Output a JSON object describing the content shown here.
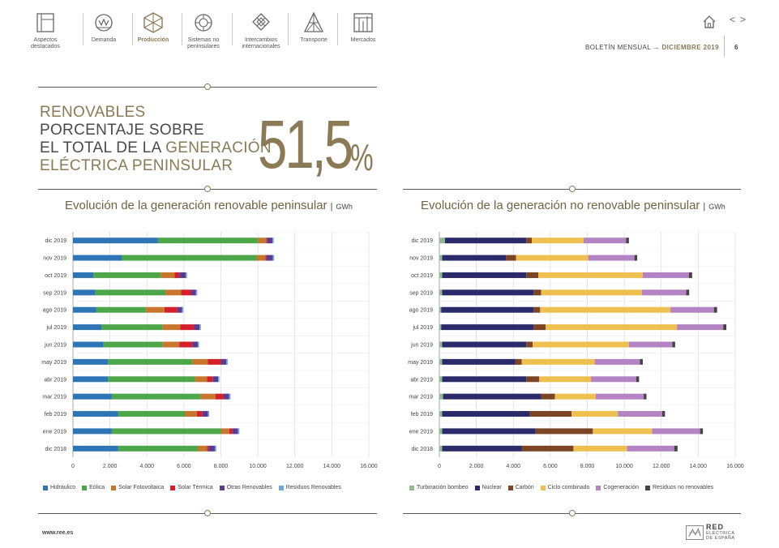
{
  "nav": {
    "items": [
      {
        "label": "Aspectos\ndestacados",
        "icon": "highlights-icon",
        "active": false
      },
      {
        "label": "Demanda",
        "icon": "demand-icon",
        "active": false
      },
      {
        "label": "Producción",
        "icon": "production-icon",
        "active": true
      },
      {
        "label": "Sistemas no\npeninsulares",
        "icon": "non-peninsular-icon",
        "active": false
      },
      {
        "label": "Intercambios\ninternacionales",
        "icon": "exchanges-icon",
        "active": false
      },
      {
        "label": "Transporte",
        "icon": "transport-icon",
        "active": false
      },
      {
        "label": "Mercados",
        "icon": "markets-icon",
        "active": false
      }
    ]
  },
  "header": {
    "prev_label": "<",
    "next_label": ">",
    "bulletin": "BOLETÍN MENSUAL",
    "arrow": "→",
    "month": "DICIEMBRE 2019",
    "page": "6"
  },
  "hero": {
    "line1": "RENOVABLES",
    "line2": "PORCENTAJE SOBRE",
    "line3_a": "EL TOTAL DE LA ",
    "line3_b": "GENERACIÓN",
    "line4": "ELÉCTRICA PENINSULAR",
    "value": "51,5",
    "percent": "%"
  },
  "colors": {
    "gold": "#8a7a56",
    "hidraulico": "#2e75b6",
    "eolica": "#4ea64a",
    "solar_fv": "#c8762b",
    "solar_termica": "#d4202a",
    "otras_renovables": "#5b3a8f",
    "residuos_renovables": "#6fa8dc",
    "turbinacion": "#8fbc8f",
    "nuclear": "#2b2a6b",
    "carbon": "#7a4425",
    "ciclo": "#eec050",
    "cogeneracion": "#b383c4",
    "residuos_no_renov": "#444444"
  },
  "chart_data": [
    {
      "type": "bar",
      "orientation": "horizontal",
      "stacked": true,
      "title": "Evolución de la generación renovable peninsular",
      "unit": "GWh",
      "categories": [
        "dic 2019",
        "nov 2019",
        "oct 2019",
        "sep 2019",
        "ago 2019",
        "jul 2019",
        "jun 2019",
        "may 2019",
        "abr 2019",
        "mar 2019",
        "feb 2019",
        "ene 2019",
        "dic 2018"
      ],
      "xlim": [
        0,
        16000
      ],
      "xticks": [
        0,
        2000,
        4000,
        6000,
        8000,
        10000,
        12000,
        14000,
        16000
      ],
      "xtick_labels": [
        "0",
        "2.000",
        "4.000",
        "6.000",
        "8.000",
        "10.000",
        "12.000",
        "14.000",
        "16.000"
      ],
      "grid": true,
      "legend_position": "bottom",
      "series": [
        {
          "name": "Hidráulico",
          "color_key": "hidraulico",
          "values": [
            4600,
            2650,
            1100,
            1200,
            1250,
            1550,
            1650,
            1900,
            1900,
            2100,
            2450,
            2100,
            2450
          ]
        },
        {
          "name": "Eólica",
          "color_key": "eolica",
          "values": [
            5400,
            7300,
            3650,
            3800,
            2700,
            3300,
            3200,
            4550,
            4700,
            4800,
            3600,
            5900,
            4300
          ]
        },
        {
          "name": "Solar Fotovoltaica",
          "color_key": "solar_fv",
          "values": [
            450,
            450,
            750,
            850,
            1000,
            950,
            900,
            850,
            650,
            800,
            650,
            450,
            500
          ]
        },
        {
          "name": "Solar Térmica",
          "color_key": "solar_termica",
          "values": [
            40,
            60,
            250,
            550,
            700,
            750,
            700,
            700,
            300,
            450,
            300,
            180,
            80
          ]
        },
        {
          "name": "Otras Renovables",
          "color_key": "otras_renovables",
          "values": [
            300,
            350,
            350,
            250,
            250,
            300,
            300,
            300,
            300,
            300,
            300,
            300,
            350
          ]
        },
        {
          "name": "Residuos Renovables",
          "color_key": "residuos_renovables",
          "values": [
            70,
            70,
            70,
            70,
            70,
            70,
            70,
            70,
            70,
            70,
            70,
            70,
            70
          ]
        }
      ]
    },
    {
      "type": "bar",
      "orientation": "horizontal",
      "stacked": true,
      "title": "Evolución de la generación no renovable peninsular",
      "unit": "GWh",
      "categories": [
        "dic 2019",
        "nov 2019",
        "oct 2019",
        "sep 2019",
        "ago 2019",
        "jul 2019",
        "jun 2019",
        "may 2019",
        "abr 2019",
        "mar 2019",
        "feb 2019",
        "ene 2019",
        "dic 2018"
      ],
      "xlim": [
        0,
        16000
      ],
      "xticks": [
        0,
        2000,
        4000,
        6000,
        8000,
        10000,
        12000,
        14000,
        16000
      ],
      "xtick_labels": [
        "0",
        "2.000",
        "4.000",
        "6.000",
        "8.000",
        "10.000",
        "12.000",
        "14.000",
        "16.000"
      ],
      "grid": true,
      "legend_position": "bottom",
      "series": [
        {
          "name": "Turbinación bombeo",
          "color_key": "turbinacion",
          "values": [
            300,
            150,
            150,
            150,
            100,
            100,
            150,
            150,
            150,
            200,
            150,
            150,
            150
          ]
        },
        {
          "name": "Nuclear",
          "color_key": "nuclear",
          "values": [
            4400,
            3450,
            4550,
            4950,
            5000,
            5000,
            4550,
            3950,
            4550,
            5300,
            4750,
            5050,
            4300
          ]
        },
        {
          "name": "Carbón",
          "color_key": "carbon",
          "values": [
            300,
            550,
            650,
            400,
            350,
            650,
            350,
            350,
            700,
            750,
            2250,
            3100,
            2800
          ]
        },
        {
          "name": "Ciclo combinado",
          "color_key": "ciclo",
          "values": [
            2800,
            3900,
            5650,
            5450,
            7050,
            7100,
            5200,
            3950,
            2800,
            2200,
            2500,
            3200,
            2900
          ]
        },
        {
          "name": "Cogeneración",
          "color_key": "cogeneracion",
          "values": [
            2300,
            2500,
            2500,
            2400,
            2350,
            2500,
            2350,
            2450,
            2450,
            2600,
            2400,
            2600,
            2550
          ]
        },
        {
          "name": "Residuos no renovables",
          "color_key": "residuos_no_renov",
          "values": [
            150,
            150,
            170,
            160,
            170,
            170,
            150,
            150,
            150,
            150,
            150,
            150,
            180
          ]
        }
      ]
    }
  ],
  "footer": {
    "url": "www.ree.es",
    "logo_main": "RED",
    "logo_sub1": "ELÉCTRICA",
    "logo_sub2": "DE ESPAÑA"
  }
}
